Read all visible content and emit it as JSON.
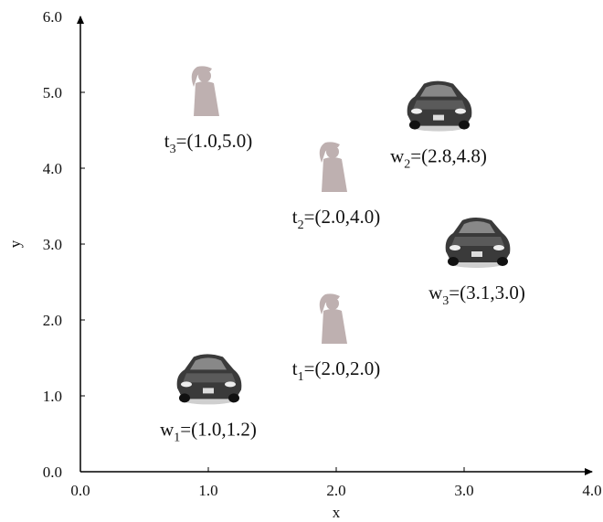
{
  "chart_data": {
    "type": "scatter",
    "title": "",
    "xlabel": "x",
    "ylabel": "y",
    "xlim": [
      0.0,
      4.0
    ],
    "ylim": [
      0.0,
      6.0
    ],
    "xticks": [
      "0.0",
      "1.0",
      "2.0",
      "3.0",
      "4.0"
    ],
    "yticks": [
      "0.0",
      "1.0",
      "2.0",
      "3.0",
      "4.0",
      "5.0",
      "6.0"
    ],
    "grid": false,
    "legend": "none",
    "series": [
      {
        "marker": "person-icon",
        "points": [
          {
            "base": "t",
            "sub": "3",
            "label": "=(1.0,5.0)",
            "x": 1.0,
            "y": 5.0
          },
          {
            "base": "t",
            "sub": "2",
            "label": "=(2.0,4.0)",
            "x": 2.0,
            "y": 4.0
          },
          {
            "base": "t",
            "sub": "1",
            "label": "=(2.0,2.0)",
            "x": 2.0,
            "y": 2.0
          }
        ]
      },
      {
        "marker": "car-icon",
        "points": [
          {
            "base": "w",
            "sub": "1",
            "label": "=(1.0,1.2)",
            "x": 1.0,
            "y": 1.2
          },
          {
            "base": "w",
            "sub": "2",
            "label": "=(2.8,4.8)",
            "x": 2.8,
            "y": 4.8
          },
          {
            "base": "w",
            "sub": "3",
            "label": "=(3.1,3.0)",
            "x": 3.1,
            "y": 3.0
          }
        ]
      }
    ],
    "colors": {
      "axis": "#000000",
      "person": "#b8a8a8",
      "car": "#3a3a3a"
    }
  }
}
